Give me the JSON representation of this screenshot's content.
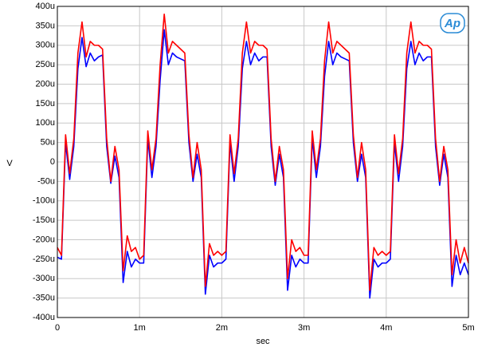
{
  "chart_data": {
    "type": "line",
    "logo": "Ap",
    "xlabel": "sec",
    "ylabel": "V",
    "grid": true,
    "xlim": [
      0,
      0.005
    ],
    "ylim": [
      -0.0004,
      0.0004
    ],
    "xticks": [
      0,
      {
        "value": 0.001,
        "label": "1m"
      },
      {
        "value": 0.002,
        "label": "2m"
      },
      {
        "value": 0.003,
        "label": "3m"
      },
      {
        "value": 0.004,
        "label": "4m"
      },
      {
        "value": 0.005,
        "label": "5m"
      }
    ],
    "yticks": [
      {
        "value": -0.0004,
        "label": "-400u"
      },
      {
        "value": -0.00035,
        "label": "-350u"
      },
      {
        "value": -0.0003,
        "label": "-300u"
      },
      {
        "value": -0.00025,
        "label": "-250u"
      },
      {
        "value": -0.0002,
        "label": "-200u"
      },
      {
        "value": -0.00015,
        "label": "-150u"
      },
      {
        "value": -0.0001,
        "label": "-100u"
      },
      {
        "value": -5e-05,
        "label": "-50u"
      },
      0,
      {
        "value": 5e-05,
        "label": "50u"
      },
      {
        "value": 0.0001,
        "label": "100u"
      },
      {
        "value": 0.00015,
        "label": "150u"
      },
      {
        "value": 0.0002,
        "label": "200u"
      },
      {
        "value": 0.00025,
        "label": "250u"
      },
      {
        "value": 0.0003,
        "label": "300u"
      },
      {
        "value": 0.00035,
        "label": "350u"
      },
      {
        "value": 0.0004,
        "label": "400u"
      }
    ],
    "x": [
      0,
      5e-05,
      0.0001,
      0.00015,
      0.0002,
      0.00025,
      0.0003,
      0.00035,
      0.0004,
      0.00045,
      0.0005,
      0.00055,
      0.0006,
      0.00065,
      0.0007,
      0.00075,
      0.0008,
      0.00085,
      0.0009,
      0.00095,
      0.001,
      0.00105,
      0.0011,
      0.00115,
      0.0012,
      0.00125,
      0.0013,
      0.00135,
      0.0014,
      0.00145,
      0.0015,
      0.00155,
      0.0016,
      0.00165,
      0.0017,
      0.00175,
      0.0018,
      0.00185,
      0.0019,
      0.00195,
      0.002,
      0.00205,
      0.0021,
      0.00215,
      0.0022,
      0.00225,
      0.0023,
      0.00235,
      0.0024,
      0.00245,
      0.0025,
      0.00255,
      0.0026,
      0.00265,
      0.0027,
      0.00275,
      0.0028,
      0.00285,
      0.0029,
      0.00295,
      0.003,
      0.00305,
      0.0031,
      0.00315,
      0.0032,
      0.00325,
      0.0033,
      0.00335,
      0.0034,
      0.00345,
      0.0035,
      0.00355,
      0.0036,
      0.00365,
      0.0037,
      0.00375,
      0.0038,
      0.00385,
      0.0039,
      0.00395,
      0.004,
      0.00405,
      0.0041,
      0.00415,
      0.0042,
      0.00425,
      0.0043,
      0.00435,
      0.0044,
      0.00445,
      0.0045,
      0.00455,
      0.0046,
      0.00465,
      0.0047,
      0.00475,
      0.0048,
      0.00485,
      0.0049,
      0.00495,
      0.005
    ],
    "series": [
      {
        "color": "#0000ff",
        "values": [
          -0.000245,
          -0.00025,
          5e-05,
          -4.5e-05,
          4e-05,
          0.00024,
          0.00032,
          0.000245,
          0.00028,
          0.00026,
          0.00027,
          0.000275,
          4e-05,
          -5.5e-05,
          1.5e-05,
          -4e-05,
          -0.00031,
          -0.00023,
          -0.00027,
          -0.00025,
          -0.00026,
          -0.00026,
          6e-05,
          -4e-05,
          4e-05,
          0.00021,
          0.00034,
          0.00025,
          0.00028,
          0.00027,
          0.000265,
          0.00026,
          5e-05,
          -5e-05,
          2e-05,
          -4e-05,
          -0.00034,
          -0.00024,
          -0.00027,
          -0.00026,
          -0.00026,
          -0.00025,
          5e-05,
          -5e-05,
          4e-05,
          0.00024,
          0.00031,
          0.00025,
          0.00028,
          0.00026,
          0.00027,
          0.00027,
          4e-05,
          -6e-05,
          2e-05,
          -4e-05,
          -0.00033,
          -0.00024,
          -0.00027,
          -0.00025,
          -0.00026,
          -0.00026,
          6e-05,
          -4e-05,
          4e-05,
          0.00022,
          0.00031,
          0.00025,
          0.00028,
          0.00027,
          0.000265,
          0.00026,
          5e-05,
          -5e-05,
          2e-05,
          -4e-05,
          -0.00035,
          -0.00025,
          -0.00027,
          -0.00026,
          -0.00026,
          -0.00025,
          5e-05,
          -5e-05,
          4e-05,
          0.00024,
          0.00031,
          0.00025,
          0.00028,
          0.00026,
          0.00027,
          0.00027,
          4e-05,
          -6e-05,
          2e-05,
          -4e-05,
          -0.00032,
          -0.00024,
          -0.00029,
          -0.00026,
          -0.00029
        ]
      },
      {
        "color": "#ff0000",
        "values": [
          -0.00022,
          -0.00024,
          7e-05,
          -3e-05,
          6e-05,
          0.00028,
          0.00036,
          0.00027,
          0.00031,
          0.0003,
          0.0003,
          0.00029,
          6e-05,
          -5e-05,
          4e-05,
          -2e-05,
          -0.00028,
          -0.00019,
          -0.00023,
          -0.00022,
          -0.00025,
          -0.00024,
          8e-05,
          -2e-05,
          6e-05,
          0.00025,
          0.00038,
          0.00028,
          0.00031,
          0.0003,
          0.00029,
          0.00028,
          7e-05,
          -4e-05,
          5e-05,
          -2e-05,
          -0.00032,
          -0.00021,
          -0.00024,
          -0.00023,
          -0.00024,
          -0.00023,
          7e-05,
          -3e-05,
          6e-05,
          0.00028,
          0.00036,
          0.00028,
          0.00031,
          0.0003,
          0.0003,
          0.00029,
          6e-05,
          -5e-05,
          4e-05,
          -2e-05,
          -0.0003,
          -0.0002,
          -0.00023,
          -0.00022,
          -0.00024,
          -0.00024,
          8e-05,
          -2e-05,
          6e-05,
          0.00026,
          0.00036,
          0.00028,
          0.00031,
          0.0003,
          0.00029,
          0.00028,
          7e-05,
          -4e-05,
          5e-05,
          -2e-05,
          -0.00033,
          -0.00022,
          -0.00024,
          -0.00023,
          -0.00024,
          -0.00023,
          7e-05,
          -3e-05,
          6e-05,
          0.00028,
          0.00036,
          0.00028,
          0.00031,
          0.0003,
          0.0003,
          0.00029,
          6e-05,
          -5e-05,
          4e-05,
          -2e-05,
          -0.00029,
          -0.0002,
          -0.00026,
          -0.00022,
          -0.00026
        ]
      }
    ]
  }
}
